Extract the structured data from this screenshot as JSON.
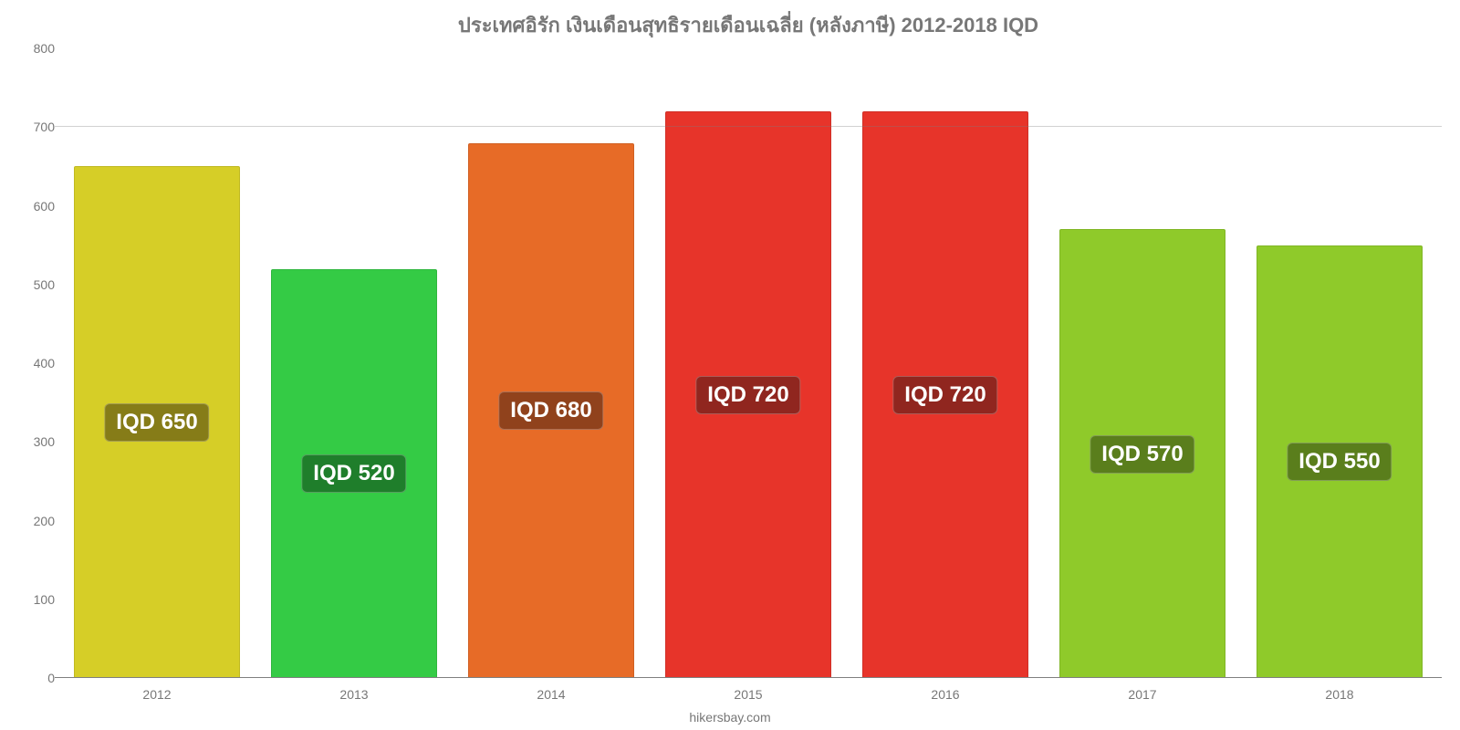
{
  "chart": {
    "type": "bar",
    "title": "ประเทศอิรัก เงินเดือนสุทธิรายเดือนเฉลี่ย (หลังภาษี) 2012-2018 IQD",
    "title_fontsize": 22,
    "title_color": "#777777",
    "background_color": "#ffffff",
    "ylim": [
      0,
      800
    ],
    "yticks": [
      0,
      100,
      200,
      300,
      400,
      500,
      600,
      700,
      800
    ],
    "ytick_fontsize": 14,
    "ytick_color": "#777777",
    "axis_line_color": "#7f7f7f",
    "categories": [
      "2012",
      "2013",
      "2014",
      "2015",
      "2016",
      "2017",
      "2018"
    ],
    "xlabel_fontsize": 14,
    "xlabel_color": "#777777",
    "bar_width_pct": 84,
    "bars": [
      {
        "value": 650,
        "label": "IQD 650",
        "fill": "#d6ce27",
        "border": "#c0b923",
        "label_bg": "#867c18"
      },
      {
        "value": 520,
        "label": "IQD 520",
        "fill": "#34cb45",
        "border": "#2fb63e",
        "label_bg": "#1f7e2b"
      },
      {
        "value": 680,
        "label": "IQD 680",
        "fill": "#e76b27",
        "border": "#d06023",
        "label_bg": "#90421c"
      },
      {
        "value": 720,
        "label": "IQD 720",
        "fill": "#e7342a",
        "border": "#d02f26",
        "label_bg": "#90261f"
      },
      {
        "value": 720,
        "label": "IQD 720",
        "fill": "#e7342a",
        "border": "#d02f26",
        "label_bg": "#90261f"
      },
      {
        "value": 570,
        "label": "IQD 570",
        "fill": "#8fca2a",
        "border": "#81b626",
        "label_bg": "#5a7e1c"
      },
      {
        "value": 550,
        "label": "IQD 550",
        "fill": "#8fca2a",
        "border": "#81b626",
        "label_bg": "#5a7e1c"
      }
    ],
    "bar_label_fontsize": 24,
    "bar_label_color": "#ffffff",
    "credit": "hikersbay.com",
    "credit_fontsize": 14,
    "credit_color": "#777777"
  }
}
